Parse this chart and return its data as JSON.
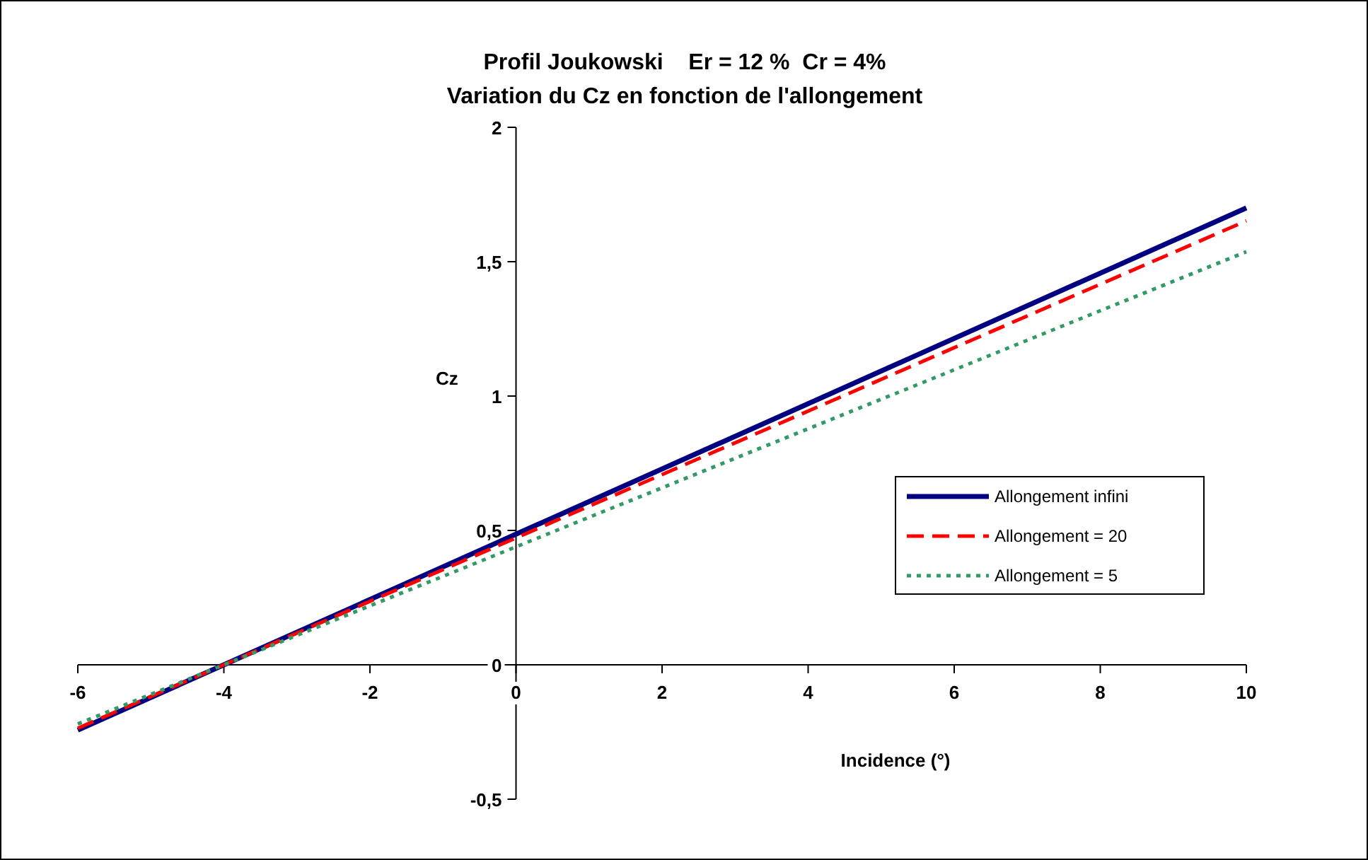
{
  "chart_data": {
    "type": "line",
    "title": "Profil Joukowski    Er = 12 %  Cr = 4%",
    "subtitle": "Variation du Cz en fonction de l'allongement",
    "xlabel": "Incidence (°)",
    "ylabel": "Cz",
    "x": [
      -6,
      -4,
      0,
      10
    ],
    "series": [
      {
        "name": "Allongement infini",
        "color": "#000080",
        "values": [
          -0.243,
          0,
          0.486,
          1.7
        ],
        "line_style": "solid"
      },
      {
        "name": "Allongement = 20",
        "color": "#ff0000",
        "values": [
          -0.236,
          0,
          0.472,
          1.652
        ],
        "line_style": "dashed"
      },
      {
        "name": "Allongement = 5",
        "color": "#339966",
        "values": [
          -0.22,
          0,
          0.439,
          1.537
        ],
        "line_style": "dotted"
      }
    ],
    "xlim": [
      -6,
      10
    ],
    "xticks": [
      -6,
      -4,
      -2,
      0,
      2,
      4,
      6,
      8,
      10
    ],
    "ylim": [
      -0.5,
      2
    ],
    "yticks": [
      {
        "value": -0.5,
        "label": "-0,5"
      },
      0,
      {
        "value": 0.5,
        "label": "0,5"
      },
      1,
      {
        "value": 1.5,
        "label": "1,5"
      },
      2
    ],
    "grid": false,
    "legend": "right"
  }
}
